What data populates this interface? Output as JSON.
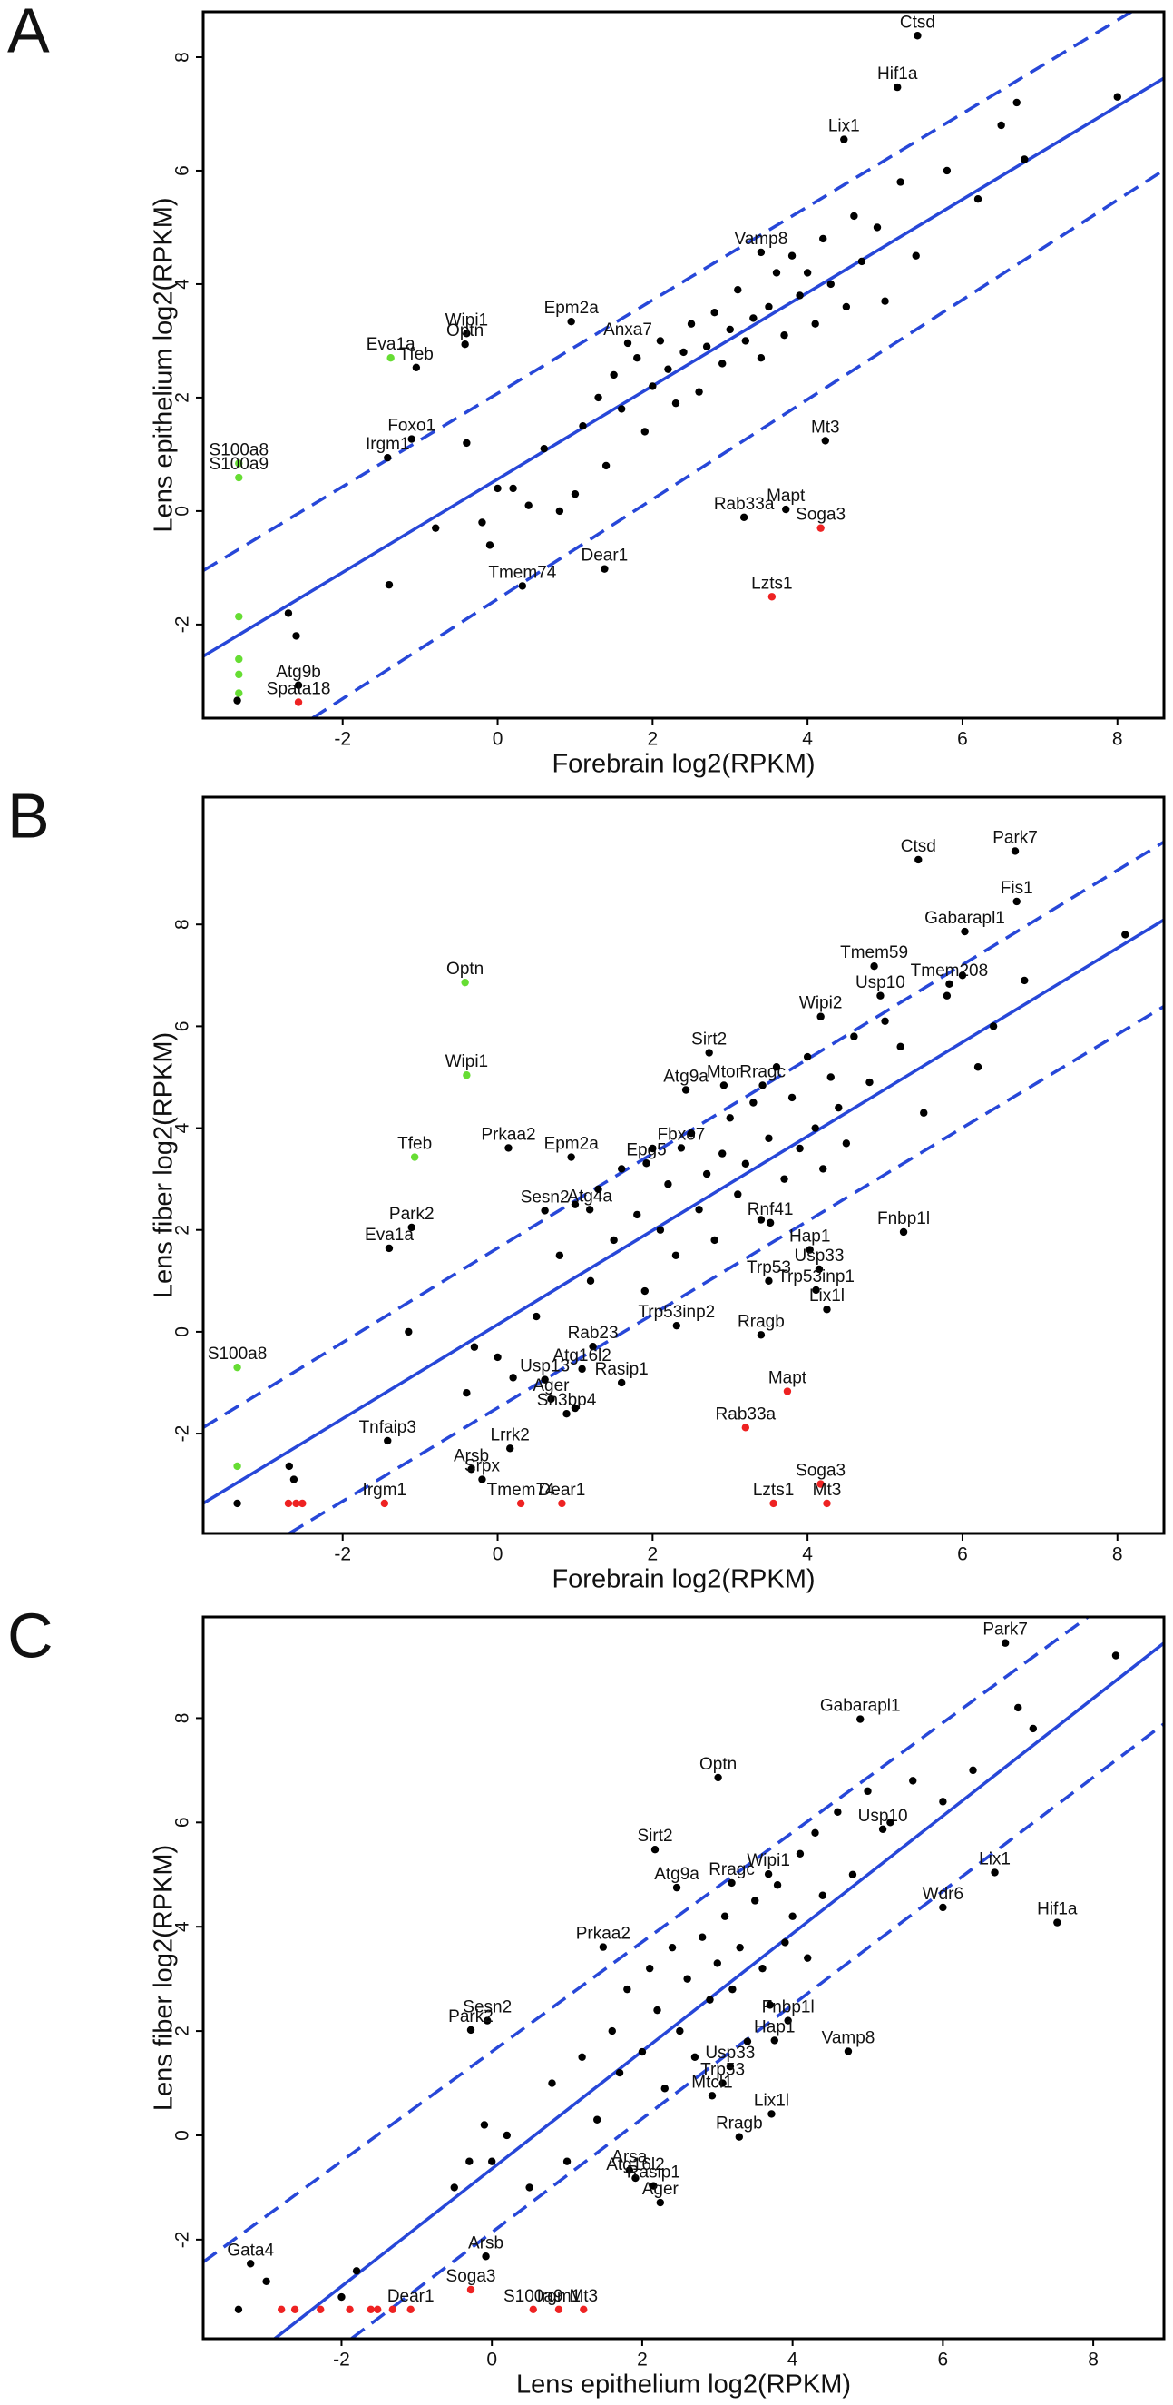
{
  "chart_data": [
    {
      "type": "scatter",
      "panel": "A",
      "xlabel": "Forebrain log2(RPKM)",
      "ylabel": "Lens epithelium log2(RPKM)",
      "xlim": [
        -3.8,
        8.6
      ],
      "ylim": [
        -3.65,
        8.8
      ],
      "xticks": [
        -2,
        0,
        2,
        4,
        6,
        8
      ],
      "yticks": [
        -2,
        0,
        2,
        4,
        6,
        8
      ],
      "lines": [
        {
          "style": "solid",
          "color": "#2747d8",
          "x": [
            -3.8,
            8.6
          ],
          "y": [
            -2.56,
            7.63
          ]
        },
        {
          "style": "dashed",
          "color": "#2747d8",
          "x": [
            -3.8,
            8.18
          ],
          "y": [
            -1.05,
            8.8
          ]
        },
        {
          "style": "dashed",
          "color": "#2747d8",
          "x": [
            -2.39,
            8.6
          ],
          "y": [
            -3.65,
            6.01
          ]
        }
      ],
      "series": [
        {
          "color": "#000000",
          "labels": [
            "Ctsd",
            "Hif1a",
            "Lix1",
            "Vamp8",
            "Anxa7",
            "Epm2a",
            "Wipi1",
            "Optn",
            "Tfeb",
            "Foxo1",
            "Irgm1",
            "Mt3",
            "Mapt",
            "Rab33a",
            "Dear1",
            "Tmem74",
            "Atg9b"
          ],
          "x": [
            5.42,
            5.16,
            4.47,
            3.4,
            1.68,
            0.95,
            -0.4,
            -0.42,
            -1.05,
            -1.11,
            -1.42,
            4.23,
            3.72,
            3.18,
            1.38,
            0.32,
            -2.57
          ],
          "y": [
            8.38,
            7.47,
            6.55,
            4.56,
            2.96,
            3.34,
            3.13,
            2.94,
            2.53,
            1.27,
            0.94,
            1.24,
            0.03,
            -0.11,
            -1.02,
            -1.32,
            -3.07
          ]
        },
        {
          "color": "#000000",
          "x": [
            0.2,
            0.4,
            0.6,
            0.8,
            1.0,
            1.1,
            1.3,
            1.4,
            1.5,
            1.6,
            1.8,
            1.9,
            2.0,
            2.1,
            2.2,
            2.3,
            2.4,
            2.5,
            2.6,
            2.7,
            2.8,
            2.9,
            3.0,
            3.1,
            3.2,
            3.3,
            3.4,
            3.5,
            3.6,
            3.7,
            3.8,
            3.9,
            4.0,
            4.1,
            4.2,
            4.3,
            4.5,
            4.6,
            4.7,
            4.9,
            5.0,
            5.2,
            5.4,
            5.8,
            6.2,
            6.5,
            6.7,
            6.8,
            8.0,
            -0.2,
            -0.4,
            -0.8,
            -1.4,
            -2.7,
            -2.6,
            -0.1,
            0.0,
            -3.36
          ],
          "y": [
            0.4,
            0.1,
            1.1,
            0.0,
            0.3,
            1.5,
            2.0,
            0.8,
            2.4,
            1.8,
            2.7,
            1.4,
            2.2,
            3.0,
            2.5,
            1.9,
            2.8,
            3.3,
            2.1,
            2.9,
            3.5,
            2.6,
            3.2,
            3.9,
            3.0,
            3.4,
            2.7,
            3.6,
            4.2,
            3.1,
            4.5,
            3.8,
            4.2,
            3.3,
            4.8,
            4.0,
            3.6,
            5.2,
            4.4,
            5.0,
            3.7,
            5.8,
            4.5,
            6.0,
            5.5,
            6.8,
            7.2,
            6.2,
            7.3,
            -0.2,
            1.2,
            -0.3,
            -1.3,
            -1.8,
            -2.2,
            -0.6,
            0.4,
            -3.34
          ]
        },
        {
          "color": "#66dd33",
          "labels": [
            "Eva1a",
            "S100a8",
            "S100a9",
            null,
            null,
            null,
            null
          ],
          "x": [
            -1.38,
            -3.34,
            -3.34,
            -3.34,
            -3.34,
            -3.34,
            -3.34
          ],
          "y": [
            2.7,
            0.84,
            0.59,
            -1.86,
            -2.61,
            -2.88,
            -3.21
          ]
        },
        {
          "color": "#ee2222",
          "labels": [
            "Soga3",
            "Lzts1",
            "Spata18"
          ],
          "x": [
            4.17,
            3.54,
            -2.57
          ],
          "y": [
            -0.3,
            -1.51,
            -3.37
          ]
        }
      ]
    },
    {
      "type": "scatter",
      "panel": "B",
      "xlabel": "Forebrain log2(RPKM)",
      "ylabel": "Lens fiber log2(RPKM)",
      "xlim": [
        -3.8,
        8.6
      ],
      "ylim": [
        -3.96,
        10.5
      ],
      "xticks": [
        -2,
        0,
        2,
        4,
        6,
        8
      ],
      "yticks": [
        -2,
        0,
        2,
        4,
        6,
        8
      ],
      "lines": [
        {
          "style": "solid",
          "color": "#2747d8",
          "x": [
            -3.8,
            8.6
          ],
          "y": [
            -3.37,
            8.09
          ]
        },
        {
          "style": "dashed",
          "color": "#2747d8",
          "x": [
            -3.8,
            8.6
          ],
          "y": [
            -1.88,
            9.62
          ]
        },
        {
          "style": "dashed",
          "color": "#2747d8",
          "x": [
            -2.69,
            8.6
          ],
          "y": [
            -3.96,
            6.39
          ]
        }
      ],
      "series": [
        {
          "color": "#000000",
          "labels": [
            "Ctsd",
            "Park7",
            "Fis1",
            "Gabarapl1",
            "Tmem59",
            "Tmem208",
            "Usp10",
            "Wipi2",
            "Sirt2",
            "Mtor",
            "Rragc",
            "Atg9a",
            "Prkaa2",
            "Fbxo7",
            "Epg5",
            "Epm2a",
            "Sesn2",
            "Atg4a",
            "Park2",
            "Eva1a",
            "Fnbp1l",
            "Rnf41",
            "Hap1",
            "Usp33",
            "Trp53",
            "Trp53inp1",
            "Lix1l",
            "Trp53inp2",
            "Rragb",
            "Rab23",
            "Atg16l2",
            "Rasip1",
            "Usp13",
            "Ager",
            "Sh3bp4",
            "Tnfaip3",
            "Lrrk2",
            "Arsb",
            "Srpx"
          ],
          "x": [
            5.43,
            6.68,
            6.7,
            6.03,
            4.86,
            5.83,
            4.94,
            4.17,
            2.73,
            2.92,
            3.42,
            2.43,
            0.14,
            2.37,
            1.92,
            0.95,
            0.61,
            1.19,
            -1.11,
            -1.4,
            5.24,
            3.52,
            4.03,
            4.15,
            3.5,
            4.11,
            4.25,
            2.31,
            3.4,
            1.23,
            1.09,
            1.6,
            0.61,
            0.69,
            0.89,
            -1.42,
            0.16,
            -0.34,
            -0.2
          ],
          "y": [
            9.27,
            9.44,
            8.45,
            7.86,
            7.18,
            6.83,
            6.6,
            6.19,
            5.48,
            4.84,
            4.84,
            4.75,
            3.61,
            3.61,
            3.31,
            3.43,
            2.38,
            2.4,
            2.05,
            1.64,
            1.96,
            2.14,
            1.61,
            1.23,
            1.0,
            0.82,
            0.44,
            0.12,
            -0.06,
            -0.29,
            -0.73,
            -1.0,
            -0.94,
            -1.32,
            -1.61,
            -2.14,
            -2.29,
            -2.7,
            -2.9
          ]
        },
        {
          "color": "#000000",
          "x": [
            0.5,
            0.8,
            1.0,
            1.2,
            1.3,
            1.5,
            1.6,
            1.8,
            1.9,
            2.0,
            2.1,
            2.2,
            2.3,
            2.5,
            2.6,
            2.7,
            2.8,
            2.9,
            3.0,
            3.1,
            3.2,
            3.3,
            3.4,
            3.5,
            3.6,
            3.7,
            3.8,
            3.9,
            4.0,
            4.1,
            4.2,
            4.3,
            4.4,
            4.5,
            4.6,
            4.8,
            5.0,
            5.2,
            5.5,
            5.8,
            6.0,
            6.2,
            6.4,
            6.8,
            8.1,
            -0.3,
            -0.4,
            0.0,
            0.2,
            1.0,
            -3.36,
            -2.69,
            -2.63,
            -1.15
          ],
          "y": [
            0.3,
            1.5,
            2.5,
            1.0,
            2.8,
            1.8,
            3.2,
            2.3,
            0.8,
            3.6,
            2.0,
            2.9,
            1.5,
            3.9,
            2.4,
            3.1,
            1.8,
            3.5,
            4.2,
            2.7,
            3.3,
            4.5,
            2.2,
            3.8,
            5.2,
            3.0,
            4.6,
            3.6,
            5.4,
            4.0,
            3.2,
            5.0,
            4.4,
            3.7,
            5.8,
            4.9,
            6.1,
            5.6,
            4.3,
            6.6,
            7.0,
            5.2,
            6.0,
            6.9,
            7.8,
            -0.3,
            -1.2,
            -0.5,
            -0.9,
            -1.5,
            -3.37,
            -2.64,
            -2.9,
            0
          ]
        },
        {
          "color": "#66dd33",
          "labels": [
            "Optn",
            "Wipi1",
            "Tfeb",
            "S100a8",
            null
          ],
          "x": [
            -0.42,
            -0.4,
            -1.07,
            -3.36,
            -3.36
          ],
          "y": [
            6.86,
            5.04,
            3.43,
            -0.7,
            -2.64
          ]
        },
        {
          "color": "#ee2222",
          "labels": [
            "Mapt",
            "Rab33a",
            "Irgm1",
            "Tmem74",
            "Dear1",
            "Lzts1",
            "Soga3",
            "Mt3",
            null,
            null,
            null
          ],
          "x": [
            3.74,
            3.2,
            -1.46,
            0.3,
            0.83,
            3.56,
            4.17,
            4.25,
            -2.7,
            -2.6,
            -2.52
          ],
          "y": [
            -1.17,
            -1.88,
            -3.37,
            -3.37,
            -3.37,
            -3.37,
            -2.99,
            -3.37,
            -3.37,
            -3.37,
            -3.37
          ]
        }
      ]
    },
    {
      "type": "scatter",
      "panel": "C",
      "xlabel": "Lens epithelium log2(RPKM)",
      "ylabel": "Lens fiber log2(RPKM)",
      "xlim": [
        -3.84,
        8.94
      ],
      "ylim": [
        -3.9,
        9.94
      ],
      "xticks": [
        -2,
        0,
        2,
        4,
        6,
        8
      ],
      "yticks": [
        -2,
        0,
        2,
        4,
        6,
        8
      ],
      "lines": [
        {
          "style": "solid",
          "color": "#2747d8",
          "x": [
            -2.89,
            8.94
          ],
          "y": [
            -3.9,
            9.44
          ]
        },
        {
          "style": "dashed",
          "color": "#2747d8",
          "x": [
            -3.84,
            7.93
          ],
          "y": [
            -2.43,
            9.94
          ]
        },
        {
          "style": "dashed",
          "color": "#2747d8",
          "x": [
            -1.87,
            8.94
          ],
          "y": [
            -3.9,
            7.89
          ]
        }
      ],
      "series": [
        {
          "color": "#000000",
          "labels": [
            "Park7",
            "Gabarapl1",
            "Optn",
            "Usp10",
            "Sirt2",
            "Lix1",
            "Wdr6",
            "Hif1a",
            "Wipi1",
            "Rragc",
            "Atg9a",
            "Prkaa2",
            "Sesn2",
            "Park2",
            "Fnbp1l",
            "Hap1",
            "Vamp8",
            "Usp33",
            "Trp53",
            "Mtcl1",
            "Lix1l",
            "Rragb",
            "Arsa",
            "Atg16l2",
            "Rasip1",
            "Ager",
            "Gata4",
            "Arsb"
          ],
          "x": [
            6.83,
            4.9,
            3.01,
            5.2,
            2.17,
            6.69,
            6.0,
            7.52,
            3.68,
            3.19,
            2.46,
            1.48,
            -0.06,
            -0.28,
            3.94,
            3.76,
            4.74,
            3.17,
            3.07,
            2.93,
            3.72,
            3.29,
            1.83,
            1.91,
            2.15,
            2.24,
            -3.21,
            -0.08
          ],
          "y": [
            9.44,
            7.98,
            6.86,
            5.87,
            5.48,
            5.04,
            4.37,
            4.08,
            5.01,
            4.84,
            4.75,
            3.61,
            2.2,
            2.02,
            2.2,
            1.82,
            1.61,
            1.32,
            1.0,
            0.76,
            0.41,
            -0.03,
            -0.67,
            -0.82,
            -0.97,
            -1.29,
            -2.46,
            -2.32
          ]
        },
        {
          "color": "#000000",
          "x": [
            0.0,
            0.2,
            0.5,
            0.8,
            1.0,
            1.2,
            1.4,
            1.6,
            1.7,
            1.8,
            2.0,
            2.1,
            2.2,
            2.3,
            2.4,
            2.5,
            2.6,
            2.7,
            2.8,
            2.9,
            3.0,
            3.1,
            3.2,
            3.3,
            3.4,
            3.5,
            3.6,
            3.7,
            3.8,
            3.9,
            4.0,
            4.1,
            4.2,
            4.3,
            4.4,
            4.6,
            4.8,
            5.0,
            5.3,
            5.6,
            6.0,
            6.4,
            7.0,
            7.2,
            8.3,
            -0.3,
            -0.1,
            -0.5,
            -1.8,
            -3.0,
            -2.0,
            -3.37
          ],
          "y": [
            -0.5,
            0.0,
            -1.0,
            1.0,
            -0.5,
            1.5,
            0.3,
            2.0,
            1.2,
            2.8,
            1.6,
            3.2,
            2.4,
            0.9,
            3.6,
            2.0,
            3.0,
            1.5,
            3.8,
            2.6,
            3.3,
            4.2,
            2.8,
            3.6,
            1.8,
            4.5,
            3.2,
            2.5,
            4.8,
            3.7,
            4.2,
            5.4,
            3.4,
            5.8,
            4.6,
            6.2,
            5.0,
            6.6,
            6.0,
            6.8,
            6.4,
            7.0,
            8.2,
            7.8,
            9.2,
            -0.5,
            0.2,
            -1.0,
            -2.6,
            -2.8,
            -3.1,
            -3.34
          ]
        },
        {
          "color": "#ee2222",
          "labels": [
            "Soga3",
            "Dear1",
            "S100a9",
            "Irgm1",
            "Mt3",
            null,
            null,
            null,
            null,
            null,
            null,
            null
          ],
          "x": [
            -0.28,
            -1.08,
            0.55,
            0.89,
            1.22,
            -2.8,
            -2.62,
            -2.28,
            -1.89,
            -1.61,
            -1.52,
            -1.32
          ],
          "y": [
            -2.96,
            -3.34,
            -3.34,
            -3.34,
            -3.34,
            -3.34,
            -3.34,
            -3.34,
            -3.34,
            -3.34,
            -3.34,
            -3.34
          ]
        }
      ]
    }
  ]
}
